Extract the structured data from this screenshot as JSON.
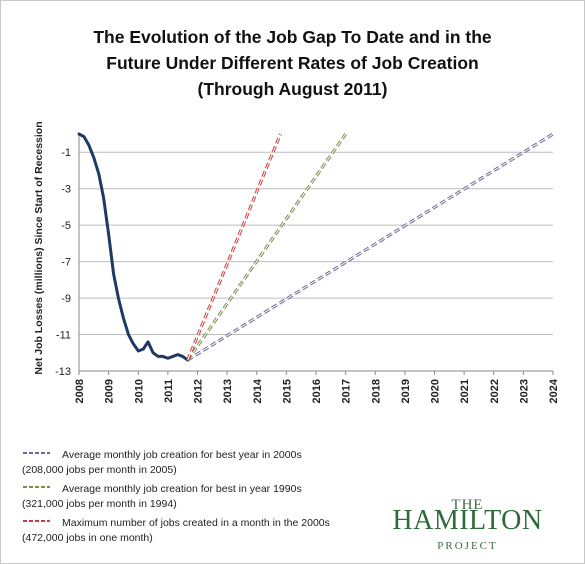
{
  "title_lines": [
    "The Evolution of the Job Gap To Date and in the",
    "Future Under Different Rates of Job Creation",
    "(Through August 2011)"
  ],
  "chart_data": {
    "type": "line",
    "ylabel": "Net Job Losses (millions) Since Start of Recession",
    "xlabel": "",
    "ylim": [
      -13,
      0
    ],
    "y_ticks": [
      -1,
      -3,
      -5,
      -7,
      -9,
      -11,
      -13
    ],
    "x_ticks": [
      "2008",
      "2009",
      "2010",
      "2011",
      "2012",
      "2013",
      "2014",
      "2015",
      "2016",
      "2017",
      "2018",
      "2019",
      "2020",
      "2021",
      "2022",
      "2023",
      "2024"
    ],
    "grid": true,
    "legend_position": "bottom",
    "series": [
      {
        "name": "",
        "style": "solid",
        "color": "#1f3864",
        "x": [
          2008.0,
          2008.17,
          2008.33,
          2008.5,
          2008.67,
          2008.83,
          2009.0,
          2009.17,
          2009.33,
          2009.5,
          2009.67,
          2009.83,
          2010.0,
          2010.17,
          2010.33,
          2010.5,
          2010.67,
          2010.83,
          2011.0,
          2011.17,
          2011.33,
          2011.5,
          2011.67
        ],
        "y": [
          0,
          -0.15,
          -0.6,
          -1.3,
          -2.2,
          -3.5,
          -5.5,
          -7.7,
          -9.0,
          -10.1,
          -11.0,
          -11.5,
          -11.9,
          -11.8,
          -11.4,
          -12.0,
          -12.2,
          -12.2,
          -12.3,
          -12.2,
          -12.1,
          -12.2,
          -12.4
        ]
      },
      {
        "name": "Average monthly job creation for best year in 2000s",
        "style": "dashed",
        "color": "#6b6b97",
        "x": [
          2011.67,
          2024.0
        ],
        "y": [
          -12.4,
          0
        ]
      },
      {
        "name": "Average monthly job creation for best in year 1990s",
        "style": "dashed",
        "color": "#7d8c4a",
        "x": [
          2011.67,
          2017.0
        ],
        "y": [
          -12.4,
          0
        ]
      },
      {
        "name": "Maximum number of jobs created in a month  in the 2000s",
        "style": "dashed",
        "color": "#d13b3b",
        "x": [
          2011.67,
          2014.8
        ],
        "y": [
          -12.4,
          0
        ]
      }
    ]
  },
  "legend": [
    {
      "line1": "Average monthly job creation for best year in 2000s",
      "line2": "(208,000 jobs per month in 2005)",
      "color": "#6b6b97"
    },
    {
      "line1": "Average monthly job creation for best in year 1990s",
      "line2": "(321,000 jobs per month in 1994)",
      "color": "#7d8c4a"
    },
    {
      "line1": "Maximum number of jobs created in a month  in the 2000s",
      "line2": "(472,000 jobs in one month)",
      "color": "#d13b3b"
    }
  ],
  "logo": {
    "top": "THE",
    "name": "HAMILTON",
    "bottom": "PROJECT",
    "color": "#2f6a3a"
  }
}
